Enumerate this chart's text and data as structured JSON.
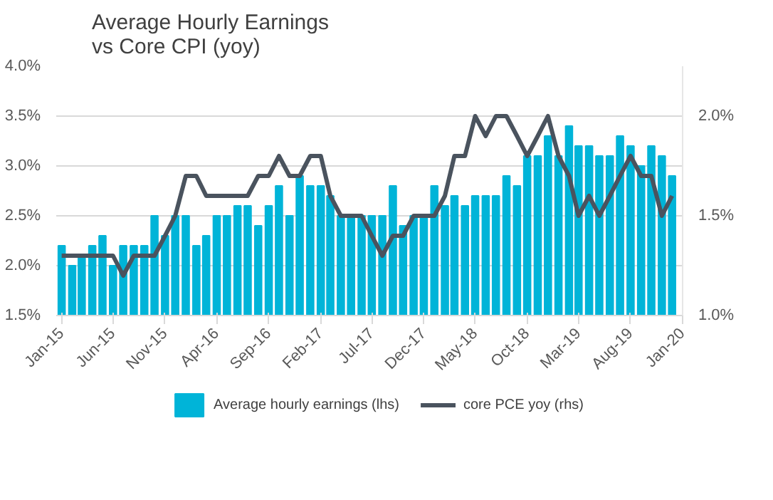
{
  "chart_data": {
    "type": "bar",
    "title": "Average Hourly Earnings\nvs Core CPI (yoy)",
    "x": [
      "2015-01",
      "2015-02",
      "2015-03",
      "2015-04",
      "2015-05",
      "2015-06",
      "2015-07",
      "2015-08",
      "2015-09",
      "2015-10",
      "2015-11",
      "2015-12",
      "2016-01",
      "2016-02",
      "2016-03",
      "2016-04",
      "2016-05",
      "2016-06",
      "2016-07",
      "2016-08",
      "2016-09",
      "2016-10",
      "2016-11",
      "2016-12",
      "2017-01",
      "2017-02",
      "2017-03",
      "2017-04",
      "2017-05",
      "2017-06",
      "2017-07",
      "2017-08",
      "2017-09",
      "2017-10",
      "2017-11",
      "2017-12",
      "2018-01",
      "2018-02",
      "2018-03",
      "2018-04",
      "2018-05",
      "2018-06",
      "2018-07",
      "2018-08",
      "2018-09",
      "2018-10",
      "2018-11",
      "2018-12",
      "2019-01",
      "2019-02",
      "2019-03",
      "2019-04",
      "2019-05",
      "2019-06",
      "2019-07",
      "2019-08",
      "2019-09",
      "2019-10",
      "2019-11",
      "2019-12"
    ],
    "series": [
      {
        "name": "Average hourly earnings (lhs)",
        "color": "#00b4d8",
        "values": [
          2.2,
          2.0,
          2.1,
          2.2,
          2.3,
          2.0,
          2.2,
          2.2,
          2.2,
          2.5,
          2.3,
          2.5,
          2.5,
          2.2,
          2.3,
          2.5,
          2.5,
          2.6,
          2.6,
          2.4,
          2.6,
          2.8,
          2.5,
          2.9,
          2.8,
          2.8,
          2.7,
          2.5,
          2.5,
          2.5,
          2.5,
          2.5,
          2.8,
          2.4,
          2.5,
          2.5,
          2.8,
          2.6,
          2.7,
          2.6,
          2.7,
          2.7,
          2.7,
          2.9,
          2.8,
          3.1,
          3.1,
          3.3,
          3.1,
          3.4,
          3.2,
          3.2,
          3.1,
          3.1,
          3.3,
          3.2,
          3.0,
          3.2,
          3.1,
          2.9
        ]
      },
      {
        "name": "core PCE yoy (rhs)",
        "type": "line",
        "axis": "y2",
        "color": "#4a535e",
        "values": [
          1.3,
          1.3,
          1.3,
          1.3,
          1.3,
          1.3,
          1.2,
          1.3,
          1.3,
          1.3,
          1.4,
          1.5,
          1.7,
          1.7,
          1.6,
          1.6,
          1.6,
          1.6,
          1.6,
          1.7,
          1.7,
          1.8,
          1.7,
          1.7,
          1.8,
          1.8,
          1.6,
          1.5,
          1.5,
          1.5,
          1.4,
          1.3,
          1.4,
          1.4,
          1.5,
          1.5,
          1.5,
          1.6,
          1.8,
          1.8,
          2.0,
          1.9,
          2.0,
          2.0,
          1.9,
          1.8,
          1.9,
          2.0,
          1.8,
          1.7,
          1.5,
          1.6,
          1.5,
          1.6,
          1.7,
          1.8,
          1.7,
          1.7,
          1.5,
          1.6
        ]
      }
    ],
    "xlim": [
      "2014-12-16",
      "2020-01-01"
    ],
    "xticks": [
      {
        "value": "2015-01",
        "label": "Jan-15"
      },
      {
        "value": "2015-06",
        "label": "Jun-15"
      },
      {
        "value": "2015-11",
        "label": "Nov-15"
      },
      {
        "value": "2016-04",
        "label": "Apr-16"
      },
      {
        "value": "2016-09",
        "label": "Sep-16"
      },
      {
        "value": "2017-02",
        "label": "Feb-17"
      },
      {
        "value": "2017-07",
        "label": "Jul-17"
      },
      {
        "value": "2017-12",
        "label": "Dec-17"
      },
      {
        "value": "2018-05",
        "label": "May-18"
      },
      {
        "value": "2018-10",
        "label": "Oct-18"
      },
      {
        "value": "2019-03",
        "label": "Mar-19"
      },
      {
        "value": "2019-08",
        "label": "Aug-19"
      },
      {
        "value": "2020-01",
        "label": "Jan-20"
      }
    ],
    "ylim": [
      1.5,
      4.0
    ],
    "yticks": [
      {
        "value": 1.5,
        "label": "1.5%"
      },
      {
        "value": 2.0,
        "label": "2.0%"
      },
      {
        "value": 2.5,
        "label": "2.5%"
      },
      {
        "value": 3.0,
        "label": "3.0%"
      },
      {
        "value": 3.5,
        "label": "3.5%"
      },
      {
        "value": 4.0,
        "label": "4.0%"
      }
    ],
    "y2lim": [
      1.0,
      2.25
    ],
    "y2ticks": [
      {
        "value": 1.0,
        "label": "1.0%"
      },
      {
        "value": 1.5,
        "label": "1.5%"
      },
      {
        "value": 2.0,
        "label": "2.0%"
      }
    ],
    "grid": "y",
    "legend": "bottom",
    "line_style": "solid",
    "marker": "none"
  }
}
